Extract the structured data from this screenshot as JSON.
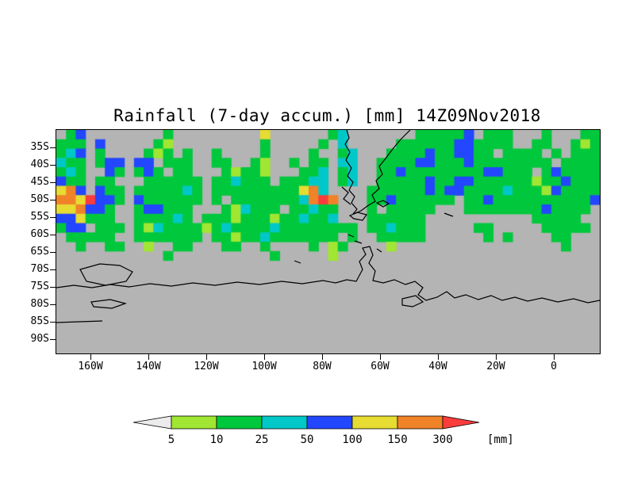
{
  "chart_data": {
    "type": "heatmap",
    "title": "Rainfall (7-day accum.) [mm] 14Z09Nov2018",
    "x_ticks": [
      "160W",
      "140W",
      "120W",
      "100W",
      "80W",
      "60W",
      "40W",
      "20W",
      "0"
    ],
    "y_ticks": [
      "35S",
      "40S",
      "45S",
      "50S",
      "55S",
      "60S",
      "65S",
      "70S",
      "75S",
      "80S",
      "85S",
      "90S"
    ],
    "background_color": "#b4b4b4",
    "colorbar": {
      "labels": [
        "5",
        "10",
        "25",
        "50",
        "100",
        "150",
        "300"
      ],
      "thresholds_mm": [
        5,
        10,
        25,
        50,
        100,
        150,
        300
      ],
      "unit_label": "[mm]",
      "segment_colors": [
        "#ebebeb",
        "#a0e632",
        "#00c83c",
        "#00c8c8",
        "#2346ff",
        "#e6dc32",
        "#f08228",
        "#fa3c3c"
      ]
    },
    "palette": {
      ".": "#b4b4b4",
      "g": "#a0e632",
      "G": "#00c83c",
      "c": "#00c8c8",
      "b": "#2346ff",
      "y": "#e6dc32",
      "o": "#f08228",
      "r": "#fa3c3c"
    },
    "palette_legend": {
      ".": "less than 5 mm / no data (gray)",
      "g": "5-10 mm",
      "G": "10-25 mm",
      "c": "25-50 mm",
      "b": "50-100 mm",
      "y": "100-150 mm",
      "o": "150-300 mm",
      "r": "more than 300 mm"
    },
    "grid_cols": 56,
    "grid_rows": [
      [
        ".Gb.....",
        "...G....",
        ".....y..",
        "....Gc..",
        ".....GGG",
        "GGb.GGG.",
        "..G...GG"
      ],
      [
        "GGG.b...",
        "..Gg....",
        ".....G..",
        "...G.c..",
        "...GGGGG",
        "GbbGGGG.",
        ".GG..GgG"
      ],
      [
        "Gcb.G...",
        ".GgG.G..",
        "G....G..",
        "..G..Gc.",
        "..GGGGbG",
        "GbbGG.GG",
        "GG.G.GGG"
      ],
      [
        "cGG.Gbb.",
        "bb.GGG..",
        "GG..Gg..",
        "G.GG.cc.",
        ".GGGGbbG",
        "GGbGGGGG",
        "GGG.GGGG"
      ],
      [
        "GcG..bG.",
        "GbG.GG..",
        ".GgGGg..",
        ".GGc.Gc.",
        ".GGbGGGG",
        "GGGGbbGG",
        "G.GbGGGG"
      ],
      [
        "bGG.GG..",
        ".GGGGGG.",
        "GGcGGG.G",
        "GGcc.Gc.",
        ".GGGGGbG",
        "GbbGGGGG",
        "GgGGbGGG"
      ],
      [
        "yob.bGG.",
        "GGGGGcG.",
        "GGGGGGGG",
        "Gyoc....",
        "GGGGGGbG",
        "bbGGGGcG",
        "GGgbGGGG"
      ],
      [
        "ooyrbbG.",
        "bGGGGGG.",
        "G.GGGGGG",
        "Gcoro...",
        "GGbGGGGG",
        "G.GGbGGG",
        "GGGGGGGb"
      ],
      [
        "yyobbG..",
        "GbbGGG..",
        ".GgcGGG.",
        "GGcGG...",
        "G.GGGGG.",
        "..GGGGGG",
        "GGbGGGG."
      ],
      [
        "bbyGGG..",
        "GGGGcG.G",
        "GGgGGGgG",
        "GcGGc...",
        "GGGGGG..",
        "........",
        ".GGGGG.."
      ],
      [
        "Gbb.GGG.",
        "GgcGGGGg",
        "GcGGGGcG",
        "GGGGGGG.",
        "GGcGGG..",
        "...GG...",
        "..GGGGG."
      ],
      [
        ".GGGGG..",
        "GGGGGGG.",
        "GGgGGcGG",
        "GGGGG.G.",
        ".GGGGG..",
        "....G.G.",
        "...GG..."
      ],
      [
        "..G..GG.",
        ".g..GG..",
        ".GG..G..",
        "..G.gG..",
        "..g.....",
        "........",
        "....G..."
      ],
      [
        "........",
        "...G....",
        "......G.",
        "....g...",
        "........",
        "........",
        "........"
      ],
      [
        "........",
        "........",
        "........",
        "........",
        "........",
        "........",
        "........"
      ],
      [
        "........",
        "........",
        "........",
        "........",
        "........",
        "........",
        "........"
      ],
      [
        "........",
        "........",
        "........",
        "........",
        "........",
        "........",
        "........"
      ],
      [
        "........",
        "........",
        "........",
        "........",
        "........",
        "........",
        "........"
      ],
      [
        "........",
        "........",
        "........",
        "........",
        "........",
        "........",
        "........"
      ],
      [
        "........",
        "........",
        "........",
        "........",
        "........",
        "........",
        "........"
      ],
      [
        "........",
        "........",
        "........",
        "........",
        "........",
        "........",
        "........"
      ],
      [
        "........",
        "........",
        "........",
        "........",
        "........",
        "........",
        "........"
      ],
      [
        "........",
        "........",
        "........",
        "........",
        "........",
        "........",
        "........"
      ],
      [
        "........",
        "........",
        "........",
        "........",
        "........",
        "........",
        "........"
      ]
    ]
  },
  "map": {
    "coastline_color": "#000000",
    "coastline_paths": [
      "M366,0 L369,10 L364,18 L370,28 L365,38 L372,48 L367,58 L374,66 L369,76 L376,84 L372,92 L379,100 L374,106",
      "M446,0 L434,12 L424,24 L415,36 L407,46 L411,56 L403,64 L407,74 L398,82 L402,90 L392,96 L384,102 L374,106",
      "M370,108 L380,104 L391,107 L386,114 L375,112 Z",
      "M360,72 L368,79 L362,87 L371,94",
      "M404,92 L412,89 L419,93 L412,97 Z",
      "M489,105 L500,109",
      "M0,199 L22,196 L45,199 L68,195 L92,198 L118,194 L145,197 L172,193 L200,196 L228,192 L256,195 L284,191 L310,194 L336,190 L352,193 L366,189 L378,191 L386,176 L382,166 L390,157 L386,149 L395,147 L399,158 L394,168 L402,178 L399,190 L412,193 L426,189 L440,195 L452,191 L462,199 L456,208 L466,215 L480,211 L492,204 L502,212 L516,208 L532,214 L548,209 L562,215 L578,211 L594,216 L612,212 L632,217 L652,213 L670,218 L685,215",
      "M30,176 L55,169 L80,171 L96,179 L88,191 L62,196 L38,191 Z",
      "M376,140 L385,143",
      "M368,132 L375,135",
      "M404,150 L410,154",
      "M44,217 L68,214 L87,219 L70,225 L47,223 Z",
      "M0,243 L58,241",
      "M436,213 L453,209 L462,217 L449,223 L436,221 Z",
      "M300,165 L308,168"
    ]
  }
}
